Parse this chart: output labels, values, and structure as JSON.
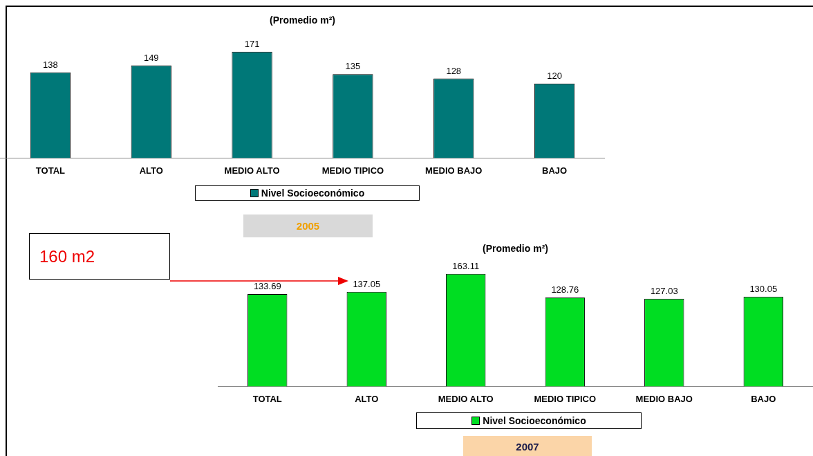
{
  "chart_data": [
    {
      "type": "bar",
      "title": "(Promedio m²)",
      "subtitle": "2005",
      "categories": [
        "TOTAL",
        "ALTO",
        "MEDIO ALTO",
        "MEDIO TIPICO",
        "MEDIO BAJO",
        "BAJO"
      ],
      "series": [
        {
          "name": "Nivel Socioeconómico",
          "color": "#007878",
          "values": [
            138,
            149,
            171,
            135,
            128,
            120
          ]
        }
      ],
      "data_labels": true,
      "legend": "bottom",
      "grid": false
    },
    {
      "type": "bar",
      "title": "(Promedio m²)",
      "subtitle": "2007",
      "categories": [
        "TOTAL",
        "ALTO",
        "MEDIO ALTO",
        "MEDIO TIPICO",
        "MEDIO BAJO",
        "BAJO"
      ],
      "series": [
        {
          "name": "Nivel Socioeconómico",
          "color": "#00dd22",
          "values": [
            133.69,
            137.05,
            163.11,
            128.76,
            127.03,
            130.05
          ]
        }
      ],
      "data_labels": true,
      "legend": "bottom",
      "grid": false,
      "annotations": [
        "160 m2"
      ]
    }
  ]
}
